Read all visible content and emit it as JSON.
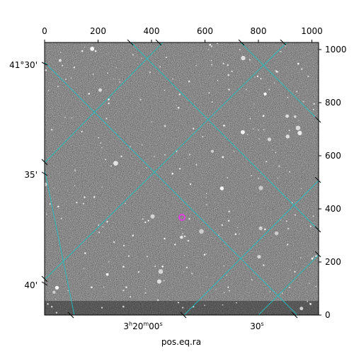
{
  "figure": {
    "xlabel": "pos.eq.ra",
    "pixel_axis_bottom_ticks": [
      "0",
      "200",
      "400",
      "600",
      "800",
      "1000"
    ],
    "pixel_axis_right_ticks": [
      "0",
      "200",
      "400",
      "600",
      "800",
      "1000"
    ],
    "dec_ticks": [
      "41°30'",
      "35'",
      "40'"
    ],
    "ra_ticks": [
      "3h20m00s",
      "30s"
    ],
    "ra_tick_parts": [
      {
        "h": "3",
        "hu": "h",
        "m": "20",
        "mu": "m",
        "s": "00",
        "su": "s"
      },
      {
        "s": "30",
        "su": "s"
      }
    ],
    "image_description_colors": {
      "grid_color": "#1fbfbf",
      "marker_color": "#e040e0",
      "frame_color": "#000000"
    }
  }
}
